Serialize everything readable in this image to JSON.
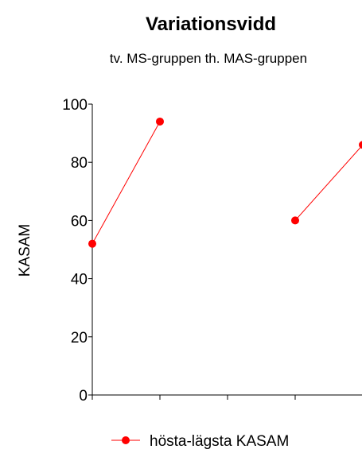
{
  "chart_data": {
    "type": "line",
    "title": "Variationsvidd",
    "subtitle": "tv. MS-gruppen  th. MAS-gruppen",
    "xlabel": "",
    "ylabel": "KASAM",
    "ylim": [
      0,
      100
    ],
    "yticks": [
      0,
      20,
      40,
      60,
      80,
      100
    ],
    "x_tick_count": 5,
    "grid": false,
    "legend_position": "bottom-center",
    "series": [
      {
        "name": "hösta-lägsta KASAM",
        "color": "#ff0000",
        "segments": [
          [
            {
              "x": 1,
              "y": 52
            },
            {
              "x": 2,
              "y": 94
            }
          ],
          [
            {
              "x": 4,
              "y": 60
            },
            {
              "x": 5,
              "y": 86
            }
          ]
        ]
      }
    ]
  }
}
